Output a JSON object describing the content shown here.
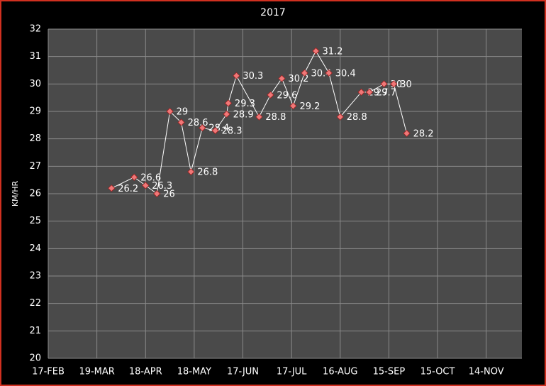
{
  "chart_data": {
    "type": "line",
    "title": "2017",
    "y_label": "KM/HR",
    "x": [
      "28-MAR",
      "11-APR",
      "18-APR",
      "25-APR",
      "3-MAY",
      "10-MAY",
      "16-MAY",
      "23-MAY",
      "31-MAY",
      "7-JUN",
      "8-JUN",
      "13-JUN",
      "27-JUN",
      "4-JUL",
      "11-JUL",
      "18-JUL",
      "25-JUL",
      "1-AUG",
      "9-AUG",
      "16-AUG",
      "29-AUG",
      "3-SEP",
      "12-SEP",
      "18-SEP",
      "26-SEP"
    ],
    "series": [
      {
        "color": "#f07878",
        "line_color": "#ffffff",
        "values": [
          26.2,
          26.6,
          26.3,
          26,
          29,
          28.6,
          26.8,
          28.4,
          28.3,
          28.9,
          29.3,
          30.3,
          28.8,
          29.6,
          30.2,
          29.2,
          30.4,
          31.2,
          30.4,
          28.8,
          29.7,
          29.7,
          30,
          30,
          28.2
        ]
      }
    ],
    "xlim": [
      "17-FEB",
      "6-DEC"
    ],
    "xticks": [
      "17-FEB",
      "19-MAR",
      "18-APR",
      "18-MAY",
      "17-JUN",
      "17-JUL",
      "16-AUG",
      "15-SEP",
      "15-OCT",
      "14-NOV"
    ],
    "ylim": [
      20,
      32
    ],
    "yticks": [
      20,
      21,
      22,
      23,
      24,
      25,
      26,
      27,
      28,
      29,
      30,
      31,
      32
    ],
    "grid": true
  }
}
